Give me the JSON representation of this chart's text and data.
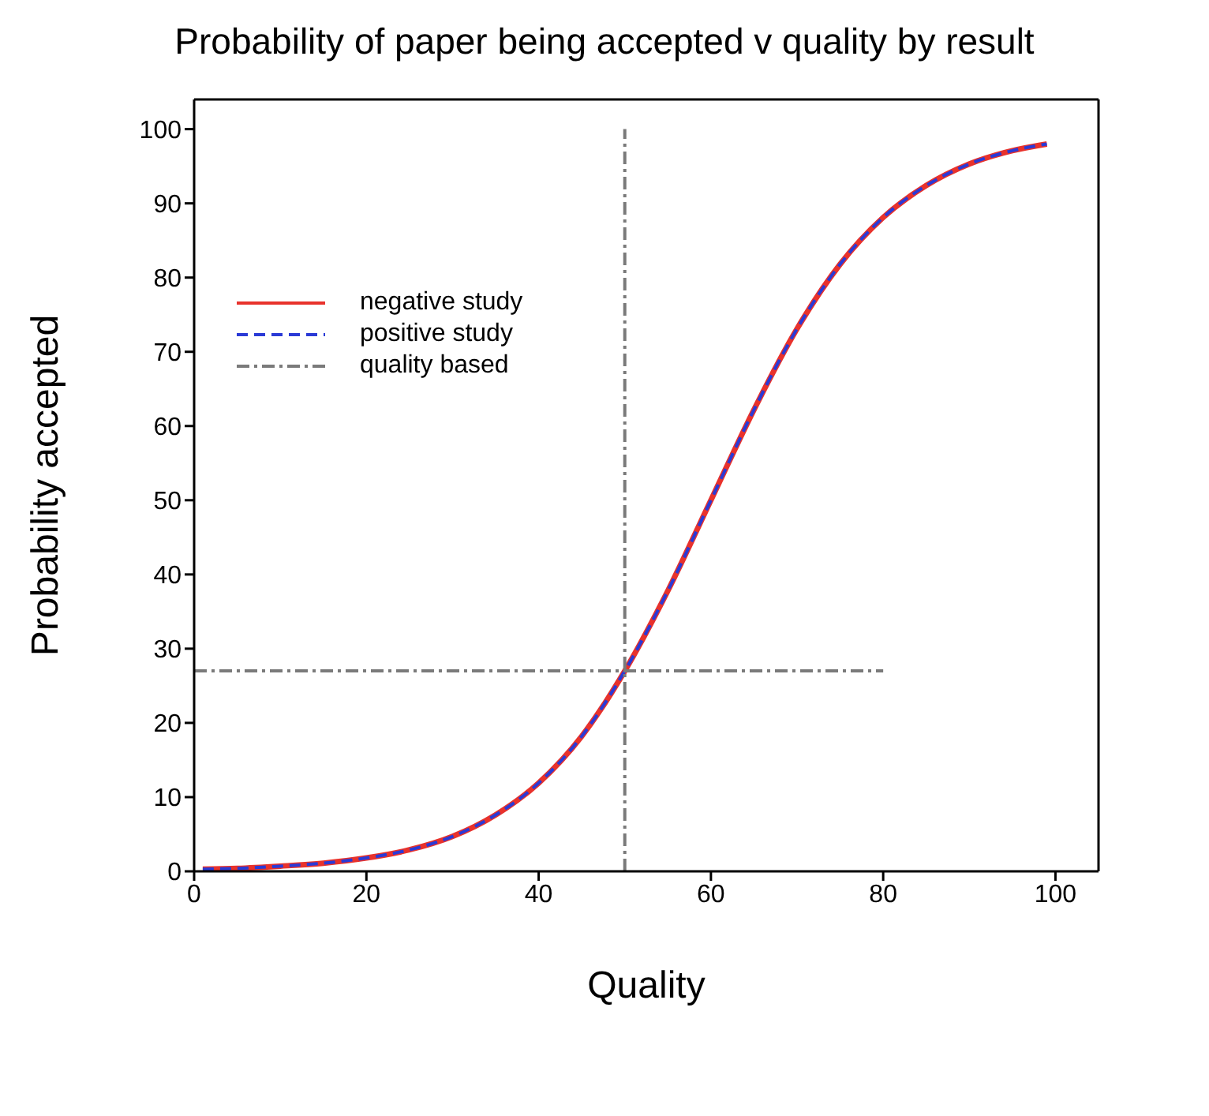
{
  "chart_data": {
    "type": "line",
    "title": "Probability of paper being accepted v quality by result",
    "xlabel": "Quality",
    "ylabel": "Probability accepted",
    "x": [
      1,
      5,
      10,
      15,
      20,
      25,
      30,
      35,
      40,
      45,
      50,
      55,
      60,
      65,
      70,
      75,
      80,
      85,
      90,
      95,
      99
    ],
    "series": [
      {
        "name": "negative study",
        "color": "#e8322c",
        "line_style": "solid",
        "values": [
          0.3,
          0.4,
          0.7,
          1.1,
          1.8,
          2.9,
          4.7,
          7.6,
          11.9,
          18.2,
          27,
          37.8,
          50,
          62.2,
          73.1,
          81.8,
          88.1,
          92.4,
          95.3,
          97.1,
          98
        ]
      },
      {
        "name": "positive study",
        "color": "#2a3ad6",
        "line_style": "dashed",
        "values": [
          0.3,
          0.4,
          0.7,
          1.1,
          1.8,
          2.9,
          4.7,
          7.6,
          11.9,
          18.2,
          27,
          37.8,
          50,
          62.2,
          73.1,
          81.8,
          88.1,
          92.4,
          95.3,
          97.1,
          98
        ]
      },
      {
        "name": "quality based",
        "color": "#7a7a7a",
        "line_style": "dashdot",
        "x": [
          0,
          80,
          null,
          50,
          50
        ],
        "values": [
          27,
          27,
          null,
          0,
          100
        ]
      }
    ],
    "xlim": [
      0,
      105
    ],
    "xticks": [
      0,
      20,
      40,
      60,
      80,
      100
    ],
    "ylim": [
      0,
      104
    ],
    "yticks": [
      0,
      10,
      20,
      30,
      40,
      50,
      60,
      70,
      80,
      90,
      100
    ],
    "legend": "top left",
    "grid": false,
    "marker": "none"
  }
}
